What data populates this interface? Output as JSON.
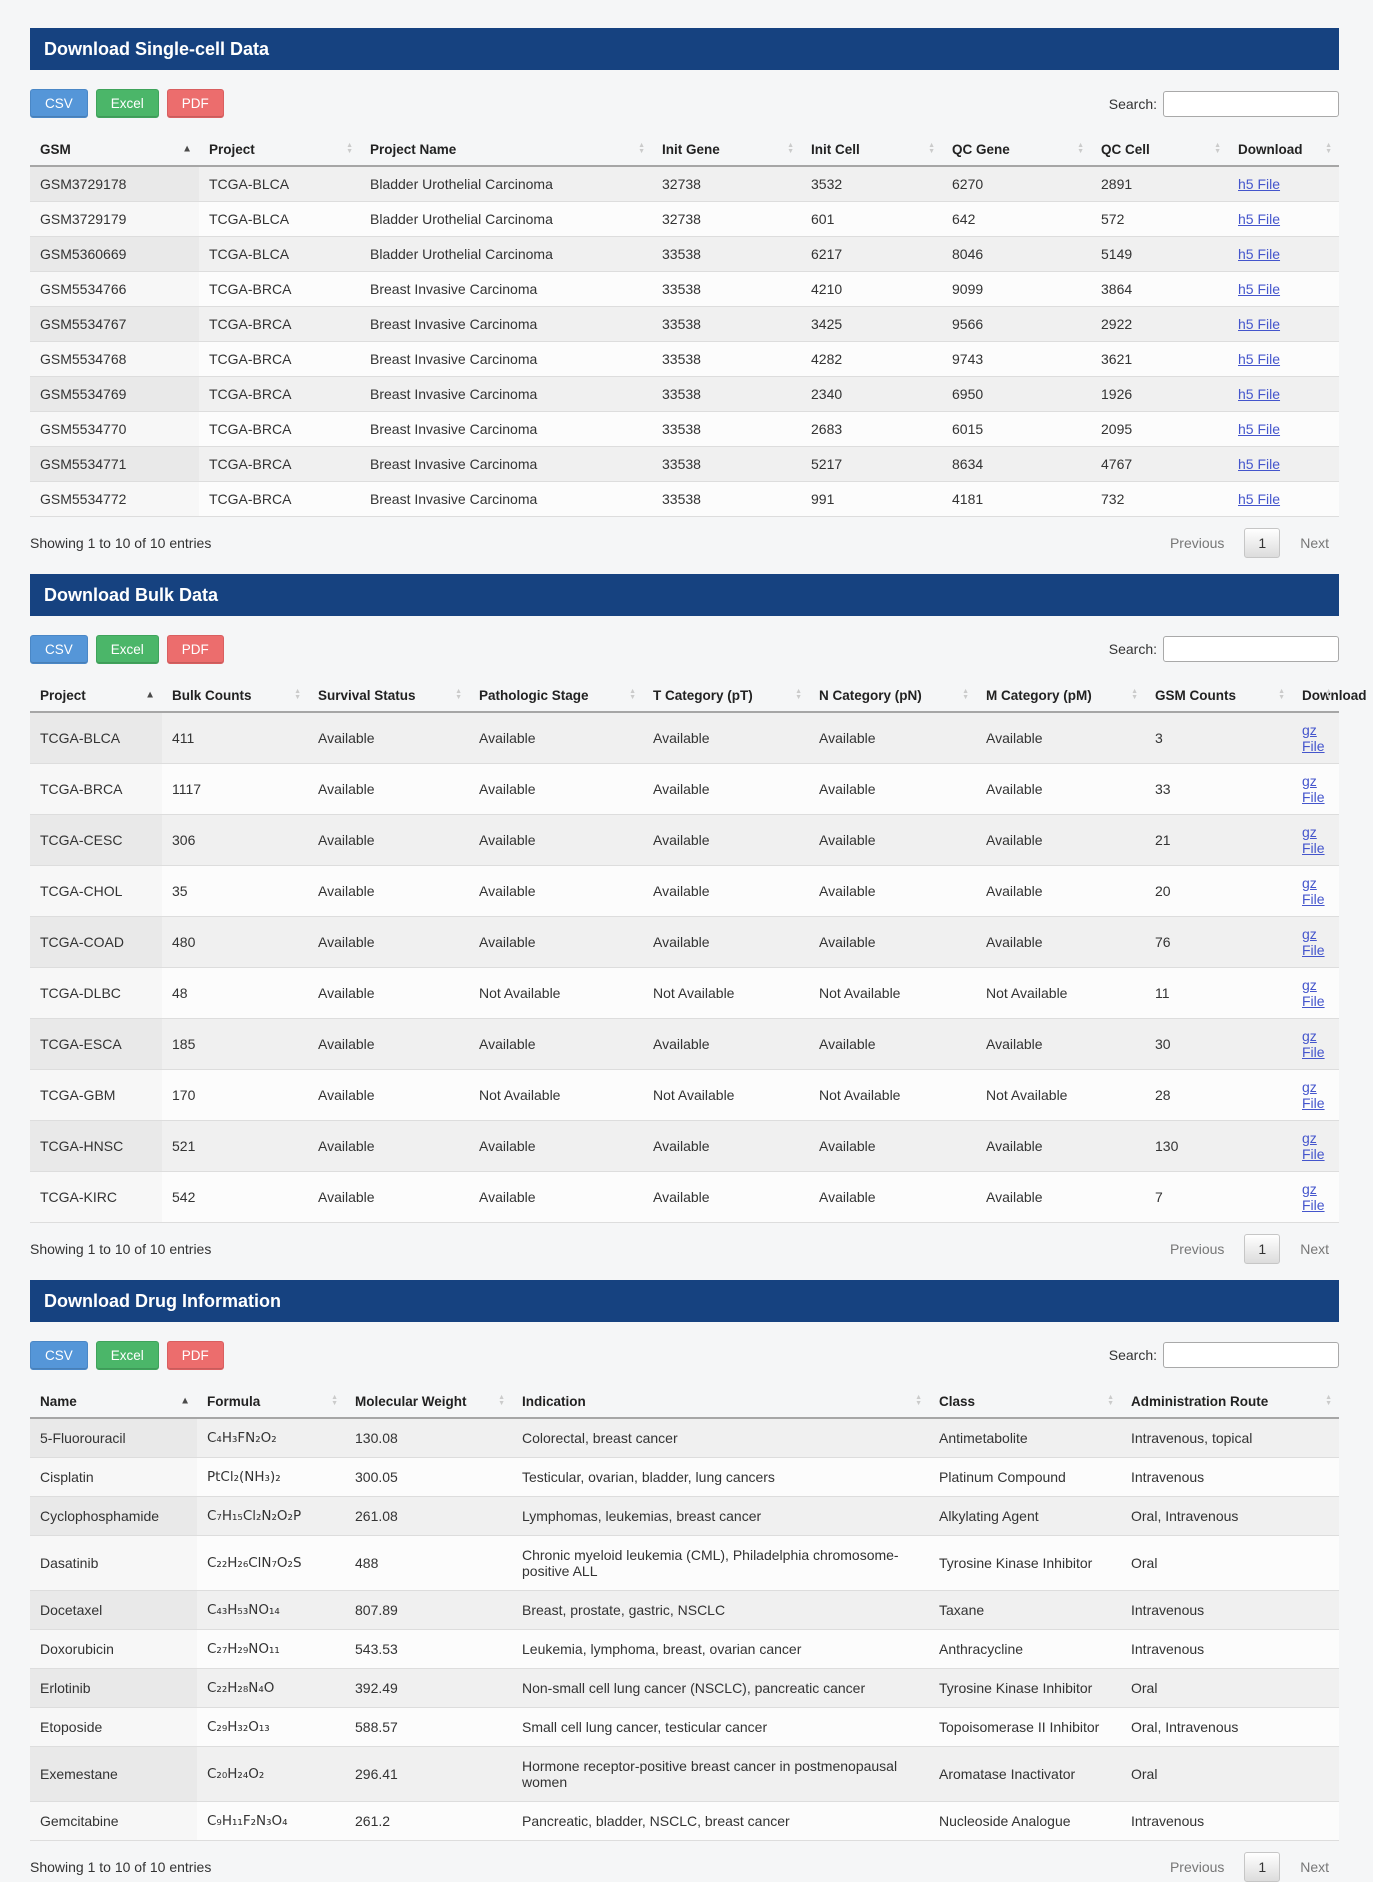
{
  "colors": {
    "section_header_bg": "#164280",
    "section_header_text": "#ffffff",
    "csv_button": "#5596d8",
    "excel_button": "#4bb669",
    "pdf_button": "#ec6d6d",
    "link": "#4455cc",
    "row_stripe": "#f0f0f0"
  },
  "sections": [
    {
      "title": "Download Single-cell Data",
      "buttons": [
        "CSV",
        "Excel",
        "PDF"
      ],
      "search_label": "Search:",
      "search_value": "",
      "columns": [
        {
          "label": "GSM",
          "sorted": true
        },
        {
          "label": "Project"
        },
        {
          "label": "Project Name"
        },
        {
          "label": "Init Gene"
        },
        {
          "label": "Init Cell"
        },
        {
          "label": "QC Gene"
        },
        {
          "label": "QC Cell"
        },
        {
          "label": "Download"
        }
      ],
      "link_col": 7,
      "rows": [
        [
          "GSM3729178",
          "TCGA-BLCA",
          "Bladder Urothelial Carcinoma",
          "32738",
          "3532",
          "6270",
          "2891",
          "h5 File"
        ],
        [
          "GSM3729179",
          "TCGA-BLCA",
          "Bladder Urothelial Carcinoma",
          "32738",
          "601",
          "642",
          "572",
          "h5 File"
        ],
        [
          "GSM5360669",
          "TCGA-BLCA",
          "Bladder Urothelial Carcinoma",
          "33538",
          "6217",
          "8046",
          "5149",
          "h5 File"
        ],
        [
          "GSM5534766",
          "TCGA-BRCA",
          "Breast Invasive Carcinoma",
          "33538",
          "4210",
          "9099",
          "3864",
          "h5 File"
        ],
        [
          "GSM5534767",
          "TCGA-BRCA",
          "Breast Invasive Carcinoma",
          "33538",
          "3425",
          "9566",
          "2922",
          "h5 File"
        ],
        [
          "GSM5534768",
          "TCGA-BRCA",
          "Breast Invasive Carcinoma",
          "33538",
          "4282",
          "9743",
          "3621",
          "h5 File"
        ],
        [
          "GSM5534769",
          "TCGA-BRCA",
          "Breast Invasive Carcinoma",
          "33538",
          "2340",
          "6950",
          "1926",
          "h5 File"
        ],
        [
          "GSM5534770",
          "TCGA-BRCA",
          "Breast Invasive Carcinoma",
          "33538",
          "2683",
          "6015",
          "2095",
          "h5 File"
        ],
        [
          "GSM5534771",
          "TCGA-BRCA",
          "Breast Invasive Carcinoma",
          "33538",
          "5217",
          "8634",
          "4767",
          "h5 File"
        ],
        [
          "GSM5534772",
          "TCGA-BRCA",
          "Breast Invasive Carcinoma",
          "33538",
          "991",
          "4181",
          "732",
          "h5 File"
        ]
      ],
      "footer": {
        "info": "Showing 1 to 10 of 10 entries",
        "previous": "Previous",
        "page": "1",
        "next": "Next"
      }
    },
    {
      "title": "Download Bulk Data",
      "buttons": [
        "CSV",
        "Excel",
        "PDF"
      ],
      "search_label": "Search:",
      "search_value": "",
      "columns": [
        {
          "label": "Project",
          "sorted": true
        },
        {
          "label": "Bulk Counts"
        },
        {
          "label": "Survival Status"
        },
        {
          "label": "Pathologic Stage"
        },
        {
          "label": "T Category (pT)"
        },
        {
          "label": "N Category (pN)"
        },
        {
          "label": "M Category (pM)"
        },
        {
          "label": "GSM Counts"
        },
        {
          "label": "Download"
        }
      ],
      "link_col": 8,
      "rows": [
        [
          "TCGA-BLCA",
          "411",
          "Available",
          "Available",
          "Available",
          "Available",
          "Available",
          "3",
          "gz File"
        ],
        [
          "TCGA-BRCA",
          "1117",
          "Available",
          "Available",
          "Available",
          "Available",
          "Available",
          "33",
          "gz File"
        ],
        [
          "TCGA-CESC",
          "306",
          "Available",
          "Available",
          "Available",
          "Available",
          "Available",
          "21",
          "gz File"
        ],
        [
          "TCGA-CHOL",
          "35",
          "Available",
          "Available",
          "Available",
          "Available",
          "Available",
          "20",
          "gz File"
        ],
        [
          "TCGA-COAD",
          "480",
          "Available",
          "Available",
          "Available",
          "Available",
          "Available",
          "76",
          "gz File"
        ],
        [
          "TCGA-DLBC",
          "48",
          "Available",
          "Not Available",
          "Not Available",
          "Not Available",
          "Not Available",
          "11",
          "gz File"
        ],
        [
          "TCGA-ESCA",
          "185",
          "Available",
          "Available",
          "Available",
          "Available",
          "Available",
          "30",
          "gz File"
        ],
        [
          "TCGA-GBM",
          "170",
          "Available",
          "Not Available",
          "Not Available",
          "Not Available",
          "Not Available",
          "28",
          "gz File"
        ],
        [
          "TCGA-HNSC",
          "521",
          "Available",
          "Available",
          "Available",
          "Available",
          "Available",
          "130",
          "gz File"
        ],
        [
          "TCGA-KIRC",
          "542",
          "Available",
          "Available",
          "Available",
          "Available",
          "Available",
          "7",
          "gz File"
        ]
      ],
      "footer": {
        "info": "Showing 1 to 10 of 10 entries",
        "previous": "Previous",
        "page": "1",
        "next": "Next"
      }
    },
    {
      "title": "Download Drug Information",
      "buttons": [
        "CSV",
        "Excel",
        "PDF"
      ],
      "search_label": "Search:",
      "search_value": "",
      "columns": [
        {
          "label": "Name",
          "sorted": true
        },
        {
          "label": "Formula"
        },
        {
          "label": "Molecular Weight"
        },
        {
          "label": "Indication"
        },
        {
          "label": "Class"
        },
        {
          "label": "Administration Route"
        }
      ],
      "link_col": -1,
      "rows": [
        [
          "5-Fluorouracil",
          "C₄H₃FN₂O₂",
          "130.08",
          "Colorectal, breast cancer",
          "Antimetabolite",
          "Intravenous, topical"
        ],
        [
          "Cisplatin",
          "PtCl₂(NH₃)₂",
          "300.05",
          "Testicular, ovarian, bladder, lung cancers",
          "Platinum Compound",
          "Intravenous"
        ],
        [
          "Cyclophosphamide",
          "C₇H₁₅Cl₂N₂O₂P",
          "261.08",
          "Lymphomas, leukemias, breast cancer",
          "Alkylating Agent",
          "Oral, Intravenous"
        ],
        [
          "Dasatinib",
          "C₂₂H₂₆ClN₇O₂S",
          "488",
          "Chronic myeloid leukemia (CML), Philadelphia chromosome-positive ALL",
          "Tyrosine Kinase Inhibitor",
          "Oral"
        ],
        [
          "Docetaxel",
          "C₄₃H₅₃NO₁₄",
          "807.89",
          "Breast, prostate, gastric, NSCLC",
          "Taxane",
          "Intravenous"
        ],
        [
          "Doxorubicin",
          "C₂₇H₂₉NO₁₁",
          "543.53",
          "Leukemia, lymphoma, breast, ovarian cancer",
          "Anthracycline",
          "Intravenous"
        ],
        [
          "Erlotinib",
          "C₂₂H₂₈N₄O",
          "392.49",
          "Non-small cell lung cancer (NSCLC), pancreatic cancer",
          "Tyrosine Kinase Inhibitor",
          "Oral"
        ],
        [
          "Etoposide",
          "C₂₉H₃₂O₁₃",
          "588.57",
          "Small cell lung cancer, testicular cancer",
          "Topoisomerase II Inhibitor",
          "Oral, Intravenous"
        ],
        [
          "Exemestane",
          "C₂₀H₂₄O₂",
          "296.41",
          "Hormone receptor-positive breast cancer in postmenopausal women",
          "Aromatase Inactivator",
          "Oral"
        ],
        [
          "Gemcitabine",
          "C₉H₁₁F₂N₃O₄",
          "261.2",
          "Pancreatic, bladder, NSCLC, breast cancer",
          "Nucleoside Analogue",
          "Intravenous"
        ]
      ],
      "footer": {
        "info": "Showing 1 to 10 of 10 entries",
        "previous": "Previous",
        "page": "1",
        "next": "Next"
      }
    }
  ]
}
